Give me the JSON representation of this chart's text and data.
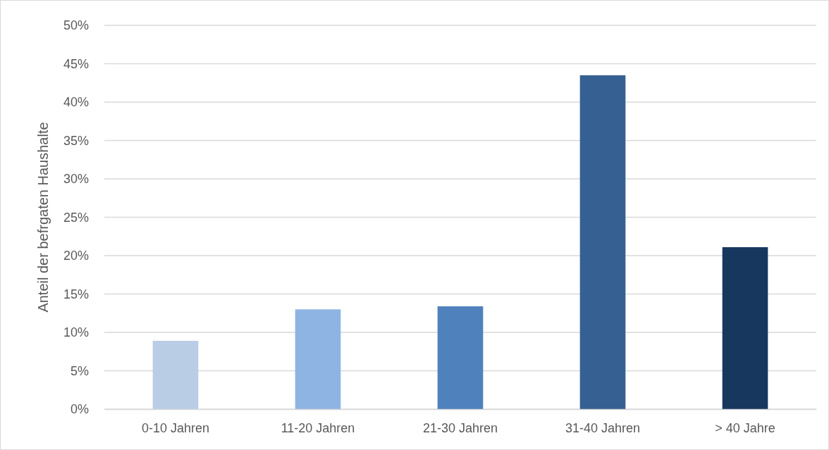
{
  "chart_data": {
    "type": "bar",
    "ylabel": "Anteil der befrgaten Haushalte",
    "categories": [
      "0-10 Jahren",
      "11-20 Jahren",
      "21-30 Jahren",
      "31-40 Jahren",
      "> 40 Jahre"
    ],
    "values": [
      8.9,
      13.0,
      13.4,
      43.5,
      21.1
    ],
    "colors": [
      "#b9cde5",
      "#8eb4e3",
      "#4f81bd",
      "#366092",
      "#17375e"
    ],
    "ylim": [
      0,
      50
    ],
    "yticks": [
      {
        "value": 0,
        "label": "0%"
      },
      {
        "value": 5,
        "label": "5%"
      },
      {
        "value": 10,
        "label": "10%"
      },
      {
        "value": 15,
        "label": "15%"
      },
      {
        "value": 20,
        "label": "20%"
      },
      {
        "value": 25,
        "label": "25%"
      },
      {
        "value": 30,
        "label": "30%"
      },
      {
        "value": 35,
        "label": "35%"
      },
      {
        "value": 40,
        "label": "40%"
      },
      {
        "value": 45,
        "label": "45%"
      },
      {
        "value": 50,
        "label": "50%"
      }
    ],
    "grid": "y"
  }
}
